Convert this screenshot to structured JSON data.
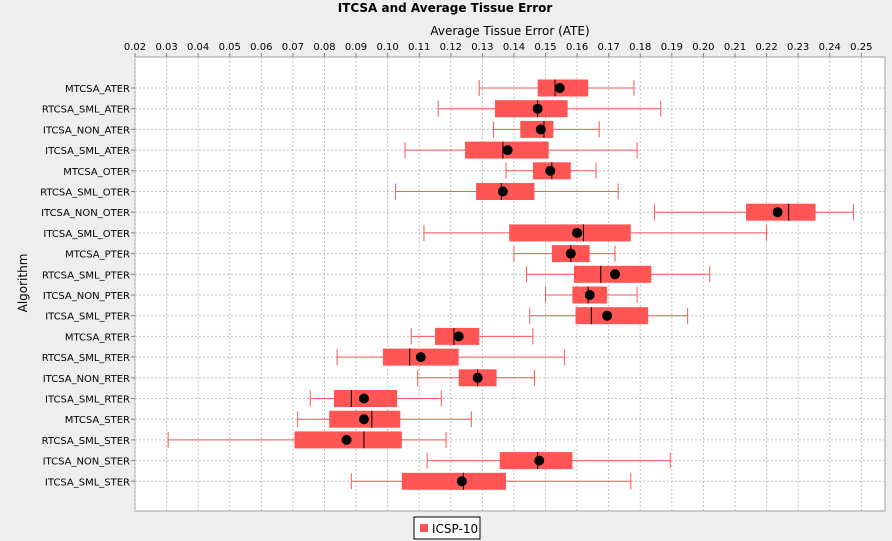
{
  "chart_data": {
    "type": "boxplot",
    "title": "ITCSA and Average Tissue Error",
    "xlabel": "Average Tissue Error (ATE)",
    "ylabel": "Algorithm",
    "xlim": [
      0.02,
      0.2575
    ],
    "xticks": [
      "0.02",
      "0.03",
      "0.04",
      "0.05",
      "0.06",
      "0.07",
      "0.08",
      "0.09",
      "0.10",
      "0.11",
      "0.12",
      "0.13",
      "0.14",
      "0.15",
      "0.16",
      "0.17",
      "0.18",
      "0.19",
      "0.20",
      "0.21",
      "0.22",
      "0.23",
      "0.24",
      "0.25"
    ],
    "grid": true,
    "legend_position": "bottom",
    "series": [
      {
        "name": "ICSP-10",
        "color": "#ff5555"
      }
    ],
    "categories": [
      "MTCSA_ATER",
      "RTCSA_SML_ATER",
      "ITCSA_NON_ATER",
      "ITCSA_SML_ATER",
      "MTCSA_OTER",
      "RTCSA_SML_OTER",
      "ITCSA_NON_OTER",
      "ITCSA_SML_OTER",
      "MTCSA_PTER",
      "RTCSA_SML_PTER",
      "ITCSA_NON_PTER",
      "ITCSA_SML_PTER",
      "MTCSA_RTER",
      "RTCSA_SML_RTER",
      "ITCSA_NON_RTER",
      "ITCSA_SML_RTER",
      "MTCSA_STER",
      "RTCSA_SML_STER",
      "ITCSA_NON_STER",
      "ITCSA_SML_STER"
    ],
    "boxes": [
      {
        "min": 0.129,
        "q1": 0.1475,
        "median": 0.153,
        "q3": 0.1635,
        "max": 0.178,
        "mean": 0.1545
      },
      {
        "min": 0.116,
        "q1": 0.134,
        "median": 0.1475,
        "q3": 0.157,
        "max": 0.1865,
        "mean": 0.1475
      },
      {
        "min": 0.1335,
        "q1": 0.142,
        "median": 0.1495,
        "q3": 0.1525,
        "max": 0.167,
        "mean": 0.1485
      },
      {
        "min": 0.1055,
        "q1": 0.1245,
        "median": 0.1365,
        "q3": 0.151,
        "max": 0.179,
        "mean": 0.138
      },
      {
        "min": 0.1375,
        "q1": 0.146,
        "median": 0.152,
        "q3": 0.158,
        "max": 0.166,
        "mean": 0.1515
      },
      {
        "min": 0.1025,
        "q1": 0.128,
        "median": 0.136,
        "q3": 0.1465,
        "max": 0.173,
        "mean": 0.1365
      },
      {
        "min": 0.1845,
        "q1": 0.2135,
        "median": 0.227,
        "q3": 0.2355,
        "max": 0.2475,
        "mean": 0.2235
      },
      {
        "min": 0.1115,
        "q1": 0.1385,
        "median": 0.162,
        "q3": 0.177,
        "max": 0.22,
        "mean": 0.16
      },
      {
        "min": 0.14,
        "q1": 0.152,
        "median": 0.158,
        "q3": 0.164,
        "max": 0.172,
        "mean": 0.158
      },
      {
        "min": 0.144,
        "q1": 0.159,
        "median": 0.1675,
        "q3": 0.1835,
        "max": 0.202,
        "mean": 0.172
      },
      {
        "min": 0.15,
        "q1": 0.1585,
        "median": 0.1635,
        "q3": 0.1695,
        "max": 0.179,
        "mean": 0.164
      },
      {
        "min": 0.145,
        "q1": 0.1595,
        "median": 0.1645,
        "q3": 0.1825,
        "max": 0.195,
        "mean": 0.1695
      },
      {
        "min": 0.1075,
        "q1": 0.115,
        "median": 0.121,
        "q3": 0.129,
        "max": 0.146,
        "mean": 0.1225
      },
      {
        "min": 0.084,
        "q1": 0.0985,
        "median": 0.107,
        "q3": 0.1225,
        "max": 0.156,
        "mean": 0.1105
      },
      {
        "min": 0.1095,
        "q1": 0.1225,
        "median": 0.1285,
        "q3": 0.1345,
        "max": 0.1465,
        "mean": 0.1285
      },
      {
        "min": 0.0755,
        "q1": 0.083,
        "median": 0.0885,
        "q3": 0.103,
        "max": 0.117,
        "mean": 0.0925
      },
      {
        "min": 0.0715,
        "q1": 0.0815,
        "median": 0.095,
        "q3": 0.104,
        "max": 0.1265,
        "mean": 0.0925
      },
      {
        "min": 0.0305,
        "q1": 0.0705,
        "median": 0.0925,
        "q3": 0.1045,
        "max": 0.1185,
        "mean": 0.087
      },
      {
        "min": 0.1125,
        "q1": 0.1355,
        "median": 0.1475,
        "q3": 0.1585,
        "max": 0.1895,
        "mean": 0.148
      },
      {
        "min": 0.0885,
        "q1": 0.1045,
        "median": 0.124,
        "q3": 0.1375,
        "max": 0.177,
        "mean": 0.1235
      }
    ]
  }
}
